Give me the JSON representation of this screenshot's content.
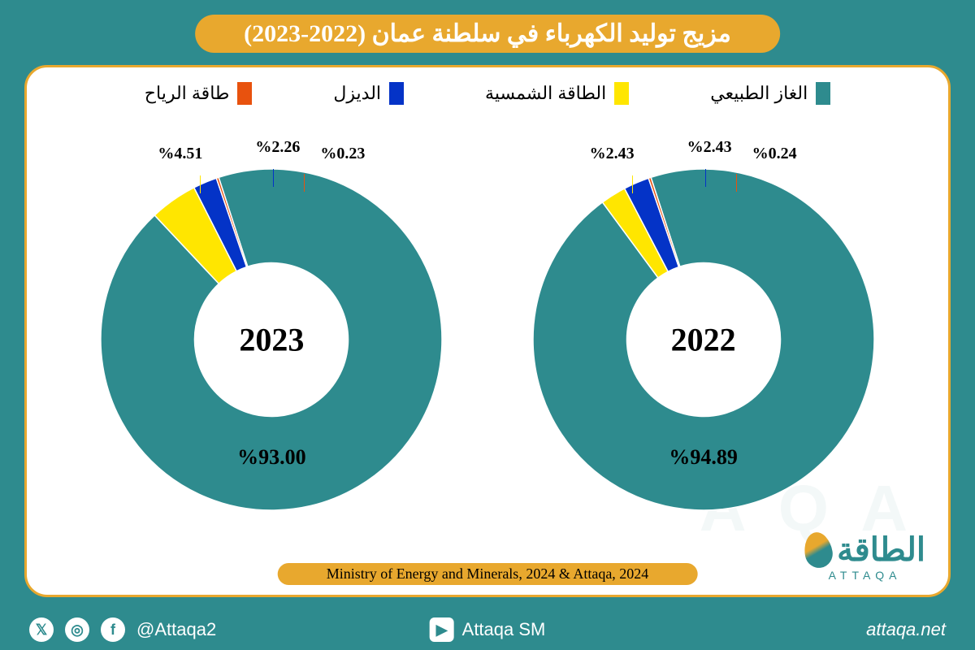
{
  "title": "مزيج توليد الكهرباء في سلطنة عمان (2022-2023)",
  "source": "Ministry of Energy and Minerals, 2024 & Attaqa, 2024",
  "logo": {
    "main": "الطاقة",
    "sub": "ATTAQA"
  },
  "background_color": "#2e8b8e",
  "accent_color": "#e8a82e",
  "panel_color": "#ffffff",
  "legend": [
    {
      "label": "الغاز الطبيعي",
      "color": "#2e8b8e"
    },
    {
      "label": "الطاقة الشمسية",
      "color": "#ffe600"
    },
    {
      "label": "الديزل",
      "color": "#0433c7"
    },
    {
      "label": "طاقة الرياح",
      "color": "#e8520e"
    }
  ],
  "chart_style": {
    "type": "donut",
    "inner_ratio": 0.45,
    "stroke": "#ffffff",
    "stroke_width": 1.5,
    "start_angle_deg": -18
  },
  "charts": [
    {
      "year": "2022",
      "slices": [
        {
          "value": 94.89,
          "color": "#2e8b8e",
          "label": "%94.89"
        },
        {
          "value": 2.43,
          "color": "#ffe600",
          "label": "%2.43"
        },
        {
          "value": 2.43,
          "color": "#0433c7",
          "label": "%2.43"
        },
        {
          "value": 0.24,
          "color": "#e8520e",
          "label": "%0.24"
        }
      ]
    },
    {
      "year": "2023",
      "slices": [
        {
          "value": 93.0,
          "color": "#2e8b8e",
          "label": "%93.00"
        },
        {
          "value": 4.51,
          "color": "#ffe600",
          "label": "%4.51"
        },
        {
          "value": 2.26,
          "color": "#0433c7",
          "label": "%2.26"
        },
        {
          "value": 0.23,
          "color": "#e8520e",
          "label": "%0.23"
        }
      ]
    }
  ],
  "social": {
    "handle1": "@Attaqa2",
    "handle2": "Attaqa SM",
    "site": "attaqa.net"
  }
}
